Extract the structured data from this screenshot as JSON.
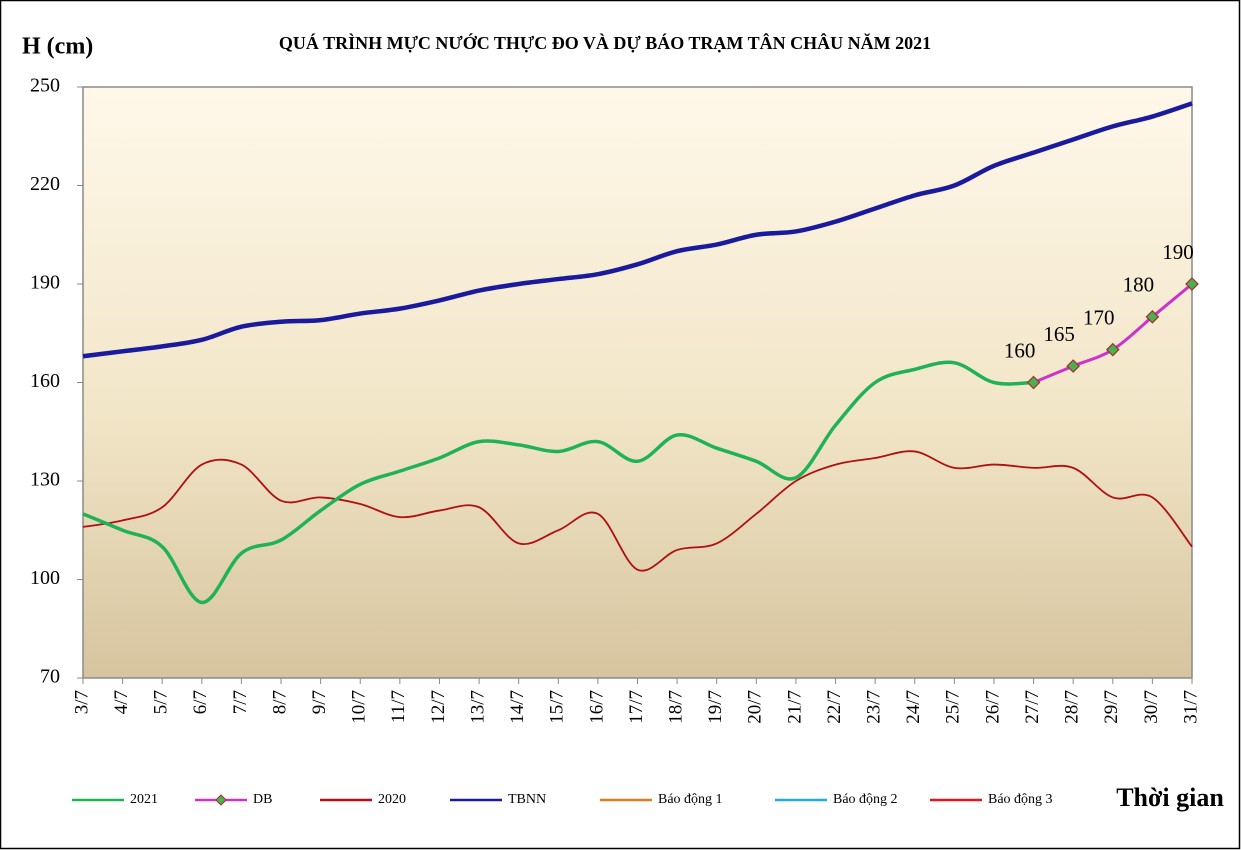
{
  "chart_data": {
    "type": "line",
    "title": "QUÁ TRÌNH MỰC NƯỚC THỰC ĐO VÀ DỰ BÁO TRẠM TÂN CHÂU NĂM 2021",
    "y_label": "H (cm)",
    "x_label": "Thời gian",
    "categories": [
      "3/7",
      "4/7",
      "5/7",
      "6/7",
      "7/7",
      "8/7",
      "9/7",
      "10/7",
      "11/7",
      "12/7",
      "13/7",
      "14/7",
      "15/7",
      "16/7",
      "17/7",
      "18/7",
      "19/7",
      "20/7",
      "21/7",
      "22/7",
      "23/7",
      "24/7",
      "25/7",
      "26/7",
      "27/7",
      "28/7",
      "29/7",
      "30/7",
      "31/7"
    ],
    "ylim": [
      70,
      250
    ],
    "yticks": [
      70,
      100,
      130,
      160,
      190,
      220,
      250
    ],
    "grid": false,
    "legend": "bottom",
    "series": [
      {
        "name": "2021",
        "color": "#1fb356",
        "width": 3.5,
        "values": [
          120,
          115,
          110,
          93,
          108,
          112,
          121,
          129,
          133,
          137,
          142,
          141,
          139,
          142,
          136,
          144,
          140,
          136,
          131,
          147,
          160,
          164,
          166,
          160,
          160,
          null,
          null,
          null,
          null
        ]
      },
      {
        "name": "DB",
        "color": "#cc33cc",
        "width": 3,
        "marker": "diamond",
        "marker_color": "#4caf50",
        "data_labels": true,
        "values": [
          null,
          null,
          null,
          null,
          null,
          null,
          null,
          null,
          null,
          null,
          null,
          null,
          null,
          null,
          null,
          null,
          null,
          null,
          null,
          null,
          null,
          null,
          null,
          null,
          160,
          165,
          170,
          180,
          190
        ]
      },
      {
        "name": "2020",
        "color": "#b01010",
        "width": 1.8,
        "values": [
          116,
          118,
          122,
          135,
          135,
          124,
          125,
          123,
          119,
          121,
          122,
          111,
          115,
          120,
          103,
          109,
          111,
          120,
          130,
          135,
          137,
          139,
          134,
          135,
          134,
          134,
          125,
          125,
          110
        ]
      },
      {
        "name": "TBNN",
        "color": "#1a1a9e",
        "width": 4.5,
        "values": [
          168,
          169.5,
          171,
          173,
          177,
          178.5,
          179,
          181,
          182.5,
          185,
          188,
          190,
          191.5,
          193,
          196,
          200,
          202,
          205,
          206,
          209,
          213,
          217,
          220,
          226,
          230,
          234,
          238,
          241,
          245
        ]
      },
      {
        "name": "Báo động 1",
        "color": "#e07b22",
        "width": 2,
        "values": [
          null,
          null,
          null,
          null,
          null,
          null,
          null,
          null,
          null,
          null,
          null,
          null,
          null,
          null,
          null,
          null,
          null,
          null,
          null,
          null,
          null,
          null,
          null,
          null,
          null,
          null,
          null,
          null,
          null
        ]
      },
      {
        "name": "Báo động 2",
        "color": "#22aaee",
        "width": 2,
        "values": [
          null,
          null,
          null,
          null,
          null,
          null,
          null,
          null,
          null,
          null,
          null,
          null,
          null,
          null,
          null,
          null,
          null,
          null,
          null,
          null,
          null,
          null,
          null,
          null,
          null,
          null,
          null,
          null,
          null
        ]
      },
      {
        "name": "Báo động 3",
        "color": "#e01818",
        "width": 2,
        "values": [
          null,
          null,
          null,
          null,
          null,
          null,
          null,
          null,
          null,
          null,
          null,
          null,
          null,
          null,
          null,
          null,
          null,
          null,
          null,
          null,
          null,
          null,
          null,
          null,
          null,
          null,
          null,
          null,
          null
        ]
      }
    ]
  }
}
